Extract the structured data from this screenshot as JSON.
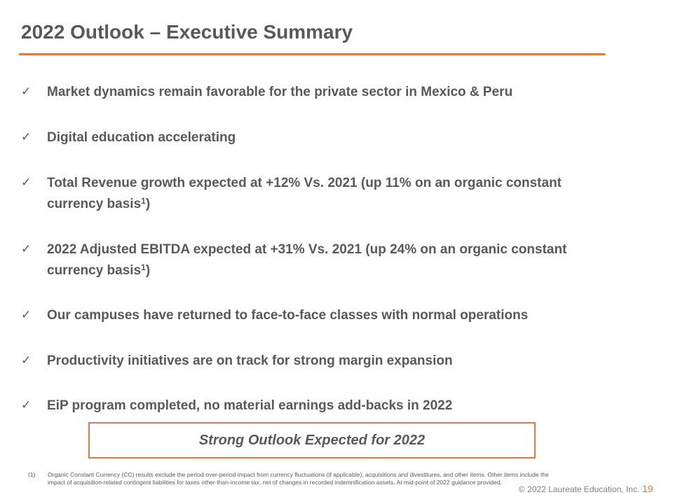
{
  "slide": {
    "title": "2022 Outlook – Executive Summary",
    "accent_color": "#e07a45",
    "check_glyph": "✓",
    "bullets": [
      {
        "lines": [
          "Market dynamics remain favorable for the private sector in Mexico & Peru"
        ]
      },
      {
        "lines": [
          "Digital education accelerating"
        ]
      },
      {
        "lines": [
          "Total Revenue growth expected at +12% Vs. 2021 (up 11% on an organic constant",
          "currency basis"
        ],
        "sup": "1",
        "tail": ")"
      },
      {
        "lines": [
          "2022 Adjusted EBITDA expected at +31% Vs. 2021 (up 24% on an organic constant",
          "currency basis"
        ],
        "sup": "1",
        "tail": ")"
      },
      {
        "lines": [
          "Our campuses have returned to face-to-face classes with normal operations"
        ]
      },
      {
        "lines": [
          "Productivity initiatives are on track for strong margin expansion"
        ]
      },
      {
        "lines": [
          "EiP program completed, no material earnings add-backs in 2022"
        ]
      }
    ],
    "callout": "Strong Outlook Expected for 2022",
    "footnote": {
      "marker": "(1)",
      "text": "Organic Constant Currency (CC) results exclude the period-over-period impact from currency fluctuations (if applicable), acquisitions and divestitures, and other items. Other items include the impact of acquisition-related contingent liabilities for taxes other-than-income tax, net of changes in recorded indemnification assets.  At mid-point of 2022 guidance provided."
    },
    "copyright": "© 2022 Laureate Education, Inc.",
    "page_number": "19"
  }
}
